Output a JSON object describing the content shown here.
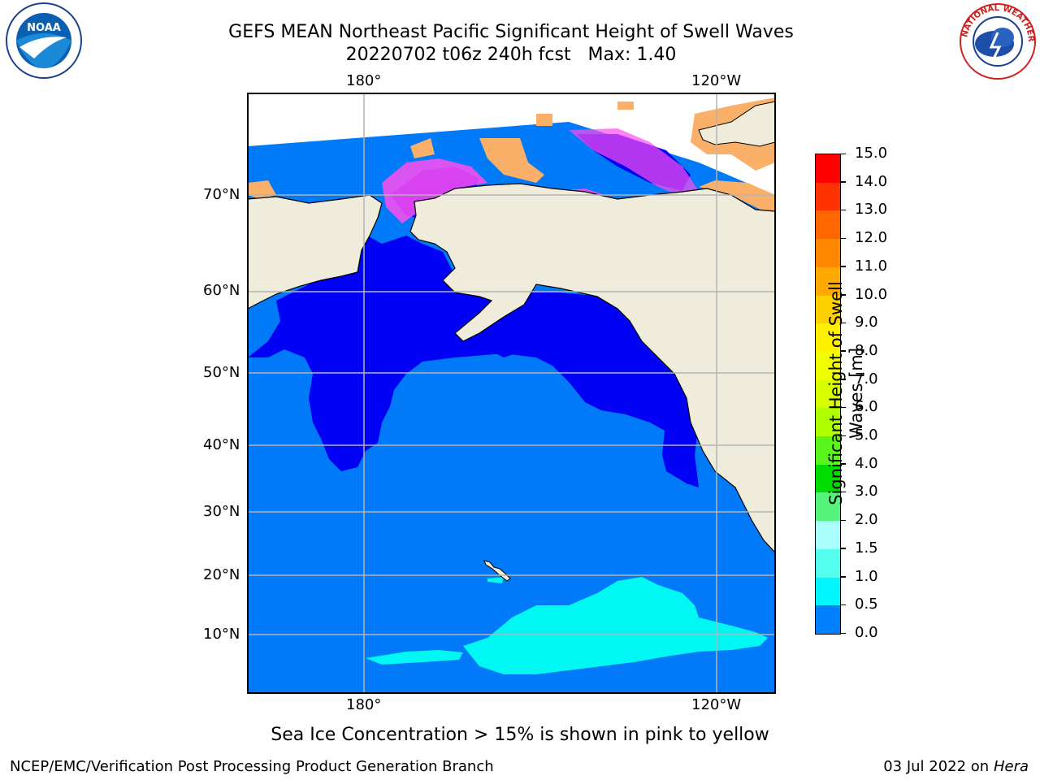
{
  "header": {
    "title_line1": "GEFS MEAN Northeast Pacific Significant Height of Swell Waves",
    "title_line2": "20220702 t06z 240h fcst   Max: 1.40"
  },
  "logos": {
    "left": "NOAA",
    "right": "NATIONAL WEATHER SERVICE"
  },
  "map": {
    "lon_labels_top": [
      "180°",
      "120°W"
    ],
    "lon_labels_bottom": [
      "180°",
      "120°W"
    ],
    "lat_labels": [
      "70°N",
      "60°N",
      "50°N",
      "40°N",
      "30°N",
      "20°N",
      "10°N"
    ],
    "colors": {
      "land": "#efecdc",
      "ocean_0_05": "#0000f5",
      "ocean_05_10": "#007af8",
      "ocean_10_15": "#00f7f3",
      "ice_pink": "#ff4df0",
      "ice_orange": "#fbb06a",
      "grid": "#b4b4b4"
    }
  },
  "colorbar": {
    "label_line1": "Significant Height of Swell",
    "label_line2": "Waves [m]",
    "ticks": [
      "15.0",
      "14.0",
      "13.0",
      "12.0",
      "11.0",
      "10.0",
      "9.0",
      "8.0",
      "7.0",
      "6.0",
      "5.0",
      "4.0",
      "3.0",
      "2.0",
      "1.5",
      "1.0",
      "0.5",
      "0.0"
    ],
    "colors": [
      "#ff0000",
      "#ff3300",
      "#ff6600",
      "#ff8800",
      "#ffaa00",
      "#ffd000",
      "#fff000",
      "#f0ff00",
      "#d8ff00",
      "#b0ff00",
      "#5af51a",
      "#00dc00",
      "#55f57d",
      "#aaffff",
      "#55fff0",
      "#00f5ff",
      "#0080ff",
      "#0000ff"
    ]
  },
  "caption": "Sea Ice Concentration > 15% is shown in pink to yellow",
  "footer": {
    "left": "NCEP/EMC/Verification Post Processing Product Generation Branch",
    "right_date": "03 Jul 2022 on ",
    "right_machine": "Hera"
  }
}
